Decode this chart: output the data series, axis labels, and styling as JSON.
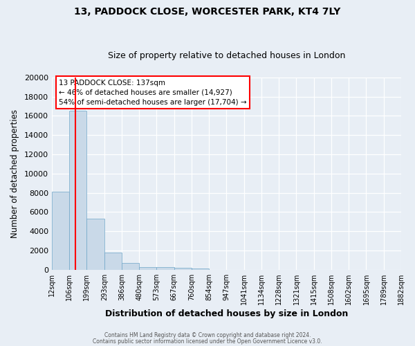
{
  "title": "13, PADDOCK CLOSE, WORCESTER PARK, KT4 7LY",
  "subtitle": "Size of property relative to detached houses in London",
  "xlabel": "Distribution of detached houses by size in London",
  "ylabel": "Number of detached properties",
  "bar_values": [
    8100,
    16500,
    5300,
    1800,
    700,
    300,
    250,
    200,
    150,
    0,
    0,
    0,
    0,
    0,
    0,
    0,
    0,
    0,
    0,
    0
  ],
  "bin_labels": [
    "12sqm",
    "106sqm",
    "199sqm",
    "293sqm",
    "386sqm",
    "480sqm",
    "573sqm",
    "667sqm",
    "760sqm",
    "854sqm",
    "947sqm",
    "1041sqm",
    "1134sqm",
    "1228sqm",
    "1321sqm",
    "1415sqm",
    "1508sqm",
    "1602sqm",
    "1695sqm",
    "1789sqm",
    "1882sqm"
  ],
  "bar_color": "#c9d9e8",
  "bar_edge_color": "#6ea6c8",
  "background_color": "#e8eef5",
  "property_sqm": 137,
  "bin_edges": [
    12,
    106,
    199,
    293,
    386,
    480,
    573,
    667,
    760,
    854,
    947,
    1041,
    1134,
    1228,
    1321,
    1415,
    1508,
    1602,
    1695,
    1789,
    1882
  ],
  "annotation_title": "13 PADDOCK CLOSE: 137sqm",
  "annotation_line1": "← 46% of detached houses are smaller (14,927)",
  "annotation_line2": "54% of semi-detached houses are larger (17,704) →",
  "annotation_box_color": "white",
  "annotation_box_edge_color": "red",
  "vline_color": "red",
  "ylim": [
    0,
    20000
  ],
  "yticks": [
    0,
    2000,
    4000,
    6000,
    8000,
    10000,
    12000,
    14000,
    16000,
    18000,
    20000
  ],
  "footer_line1": "Contains HM Land Registry data © Crown copyright and database right 2024.",
  "footer_line2": "Contains public sector information licensed under the Open Government Licence v3.0."
}
